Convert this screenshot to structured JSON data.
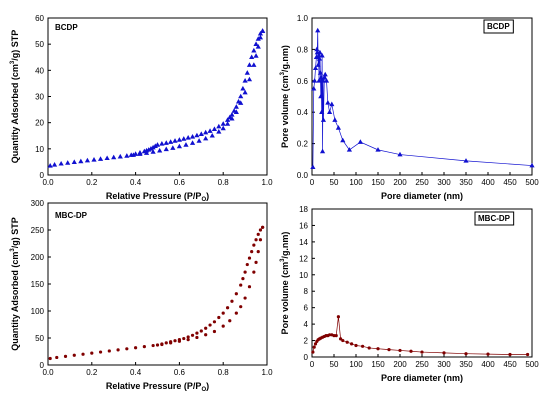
{
  "chart_data": [
    {
      "id": "bcdp-isotherm",
      "type": "scatter",
      "title": "BCDP",
      "xlabel": "Relative Pressure (P/P",
      "xlabel_sub": "O",
      "xlabel_close": ")",
      "ylabel": "Quantity Adsorbed (cm",
      "ylabel_sup": "3",
      "ylabel_tail": "/g) STP",
      "xlim": [
        0,
        1.0
      ],
      "ylim": [
        0,
        60
      ],
      "xticks": [
        0.0,
        0.2,
        0.4,
        0.6,
        0.8,
        1.0
      ],
      "xtick_labels": [
        "0.0",
        "0.2",
        "0.4",
        "0.6",
        "0.8",
        "1.0"
      ],
      "yticks": [
        0,
        10,
        20,
        30,
        40,
        50,
        60
      ],
      "ytick_labels": [
        "0",
        "10",
        "20",
        "30",
        "40",
        "50",
        "60"
      ],
      "grid": false,
      "legend": "none",
      "series": [
        {
          "role": "adsorption",
          "color": "#1010d0",
          "marker": "triangle",
          "x": [
            0.01,
            0.03,
            0.06,
            0.09,
            0.12,
            0.15,
            0.18,
            0.21,
            0.24,
            0.27,
            0.3,
            0.33,
            0.36,
            0.39,
            0.42,
            0.45,
            0.48,
            0.51,
            0.54,
            0.57,
            0.6,
            0.63,
            0.66,
            0.69,
            0.72,
            0.75,
            0.78,
            0.8,
            0.82,
            0.84,
            0.86,
            0.88,
            0.9,
            0.92,
            0.94,
            0.95,
            0.96,
            0.97,
            0.98
          ],
          "y": [
            3.5,
            3.9,
            4.3,
            4.6,
            4.9,
            5.2,
            5.5,
            5.8,
            6.1,
            6.4,
            6.7,
            7.0,
            7.3,
            7.6,
            8.0,
            8.4,
            8.8,
            9.3,
            9.8,
            10.3,
            10.9,
            11.5,
            12.2,
            13.0,
            13.9,
            15.0,
            16.5,
            17.8,
            19.5,
            21.5,
            24.0,
            27.5,
            31.5,
            36.5,
            42.0,
            45.5,
            49.0,
            52.5,
            55.0
          ]
        },
        {
          "role": "desorption",
          "color": "#1010d0",
          "marker": "triangle",
          "x": [
            0.98,
            0.97,
            0.96,
            0.95,
            0.94,
            0.93,
            0.92,
            0.91,
            0.9,
            0.89,
            0.88,
            0.87,
            0.86,
            0.85,
            0.84,
            0.83,
            0.82,
            0.8,
            0.78,
            0.76,
            0.74,
            0.72,
            0.7,
            0.68,
            0.66,
            0.64,
            0.62,
            0.6,
            0.58,
            0.56,
            0.54,
            0.52,
            0.5,
            0.49,
            0.48,
            0.47,
            0.46,
            0.45,
            0.44,
            0.42,
            0.4,
            0.38
          ],
          "y": [
            55.0,
            54.0,
            52.0,
            50.0,
            47.5,
            45.0,
            42.0,
            39.0,
            36.0,
            33.0,
            30.0,
            28.0,
            26.0,
            24.5,
            23.0,
            22.0,
            21.0,
            19.5,
            18.5,
            17.5,
            16.8,
            16.2,
            15.6,
            15.1,
            14.6,
            14.2,
            13.8,
            13.4,
            13.0,
            12.6,
            12.2,
            11.9,
            11.5,
            11.0,
            10.5,
            10.0,
            9.6,
            9.3,
            9.0,
            8.5,
            8.0,
            7.6
          ]
        }
      ]
    },
    {
      "id": "bcdp-psd",
      "type": "line",
      "title": "BCDP",
      "xlabel": "Pore diameter (nm)",
      "ylabel": "Pore volume (cm",
      "ylabel_sup": "3",
      "ylabel_tail": "/g.nm)",
      "xlim": [
        0,
        500
      ],
      "ylim": [
        0,
        1.0
      ],
      "xticks": [
        0,
        50,
        100,
        150,
        200,
        250,
        300,
        350,
        400,
        450,
        500
      ],
      "xtick_labels": [
        "0",
        "50",
        "100",
        "150",
        "200",
        "250",
        "300",
        "350",
        "400",
        "450",
        "500"
      ],
      "yticks": [
        0.0,
        0.2,
        0.4,
        0.6,
        0.8,
        1.0
      ],
      "ytick_labels": [
        "0.0",
        "0.2",
        "0.4",
        "0.6",
        "0.8",
        "1.0"
      ],
      "grid": false,
      "legend": "none",
      "series": [
        {
          "color": "#1010d0",
          "marker": "triangle",
          "x": [
            2,
            4,
            6,
            8,
            10,
            11,
            12,
            13,
            14,
            15,
            16,
            17,
            18,
            19,
            20,
            21,
            22,
            23,
            24,
            25,
            26,
            28,
            30,
            33,
            36,
            40,
            45,
            52,
            60,
            70,
            85,
            110,
            150,
            200,
            350,
            500
          ],
          "y": [
            0.05,
            0.55,
            0.6,
            0.68,
            0.75,
            0.8,
            0.78,
            0.92,
            0.7,
            0.76,
            0.6,
            0.74,
            0.78,
            0.65,
            0.5,
            0.62,
            0.4,
            0.76,
            0.15,
            0.6,
            0.35,
            0.62,
            0.64,
            0.6,
            0.46,
            0.4,
            0.45,
            0.35,
            0.3,
            0.22,
            0.16,
            0.21,
            0.16,
            0.13,
            0.09,
            0.06
          ]
        }
      ]
    },
    {
      "id": "mbcdp-isotherm",
      "type": "scatter",
      "title": "MBC-DP",
      "xlabel": "Relative Pressure (P/P",
      "xlabel_sub": "O",
      "xlabel_close": ")",
      "ylabel": "Quantity Adsorbed (cm",
      "ylabel_sup": "3",
      "ylabel_tail": "/g) STP",
      "xlim": [
        0,
        1.0
      ],
      "ylim": [
        0,
        300
      ],
      "xticks": [
        0.0,
        0.2,
        0.4,
        0.6,
        0.8,
        1.0
      ],
      "xtick_labels": [
        "0.0",
        "0.2",
        "0.4",
        "0.6",
        "0.8",
        "1.0"
      ],
      "yticks": [
        0,
        50,
        100,
        150,
        200,
        250,
        300
      ],
      "ytick_labels": [
        "0",
        "50",
        "100",
        "150",
        "200",
        "250",
        "300"
      ],
      "grid": false,
      "legend": "none",
      "series": [
        {
          "role": "adsorption",
          "color": "#800000",
          "marker": "dot",
          "x": [
            0.01,
            0.04,
            0.08,
            0.12,
            0.16,
            0.2,
            0.24,
            0.28,
            0.32,
            0.36,
            0.4,
            0.44,
            0.48,
            0.52,
            0.56,
            0.6,
            0.64,
            0.68,
            0.72,
            0.76,
            0.8,
            0.83,
            0.86,
            0.88,
            0.9,
            0.92,
            0.94,
            0.95,
            0.96,
            0.97,
            0.98
          ],
          "y": [
            12,
            14,
            16,
            18,
            20,
            22,
            24,
            26,
            28,
            30,
            32,
            34,
            36,
            38,
            41,
            44,
            47,
            51,
            56,
            62,
            72,
            82,
            96,
            108,
            124,
            145,
            172,
            190,
            210,
            232,
            255
          ]
        },
        {
          "role": "desorption",
          "color": "#800000",
          "marker": "dot",
          "x": [
            0.98,
            0.97,
            0.96,
            0.95,
            0.94,
            0.93,
            0.92,
            0.91,
            0.9,
            0.89,
            0.88,
            0.86,
            0.84,
            0.82,
            0.8,
            0.78,
            0.76,
            0.74,
            0.72,
            0.7,
            0.68,
            0.66,
            0.64,
            0.62,
            0.6,
            0.58,
            0.56,
            0.54,
            0.52,
            0.5
          ],
          "y": [
            255,
            250,
            242,
            232,
            222,
            210,
            198,
            186,
            172,
            160,
            148,
            132,
            118,
            106,
            96,
            88,
            80,
            74,
            68,
            63,
            59,
            55,
            52,
            49,
            47,
            45,
            43,
            41,
            39,
            37
          ]
        }
      ]
    },
    {
      "id": "mbcdp-psd",
      "type": "line",
      "title": "MBC-DP",
      "xlabel": "Pore diameter (nm)",
      "ylabel": "Pore volume (cm",
      "ylabel_sup": "3",
      "ylabel_tail": "/g.nm)",
      "xlim": [
        0,
        500
      ],
      "ylim": [
        0,
        18
      ],
      "xticks": [
        0,
        50,
        100,
        150,
        200,
        250,
        300,
        350,
        400,
        450,
        500
      ],
      "xtick_labels": [
        "0",
        "50",
        "100",
        "150",
        "200",
        "250",
        "300",
        "350",
        "400",
        "450",
        "500"
      ],
      "yticks": [
        0,
        2,
        4,
        6,
        8,
        10,
        12,
        14,
        16,
        18
      ],
      "ytick_labels": [
        "0",
        "2",
        "4",
        "6",
        "8",
        "10",
        "12",
        "14",
        "16",
        "18"
      ],
      "grid": false,
      "legend": "none",
      "series": [
        {
          "color": "#800000",
          "marker": "dot",
          "x": [
            2,
            5,
            8,
            11,
            14,
            17,
            20,
            24,
            28,
            32,
            36,
            40,
            45,
            50,
            55,
            60,
            65,
            70,
            80,
            90,
            100,
            115,
            130,
            150,
            175,
            200,
            225,
            250,
            300,
            350,
            400,
            450,
            490
          ],
          "y": [
            0.6,
            1.2,
            1.6,
            1.9,
            2.1,
            2.2,
            2.3,
            2.4,
            2.5,
            2.6,
            2.6,
            2.7,
            2.7,
            2.6,
            2.6,
            4.9,
            2.2,
            2.0,
            1.8,
            1.6,
            1.4,
            1.3,
            1.1,
            1.0,
            0.9,
            0.8,
            0.7,
            0.6,
            0.5,
            0.4,
            0.35,
            0.3,
            0.3
          ]
        }
      ]
    }
  ]
}
